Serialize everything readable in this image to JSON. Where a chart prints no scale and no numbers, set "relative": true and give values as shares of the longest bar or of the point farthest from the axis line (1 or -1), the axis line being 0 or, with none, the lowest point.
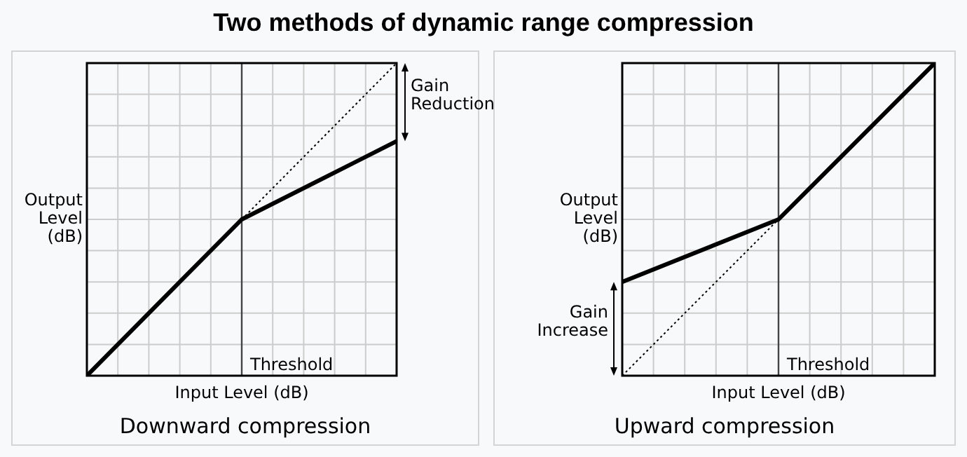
{
  "chart_data": [
    {
      "type": "line",
      "title": "Two methods of dynamic range compression",
      "subtitle": "Downward compression",
      "xlabel": "Input Level (dB)",
      "ylabel": "Output Level (dB)",
      "relative": true,
      "categories": [
        null,
        null,
        null
      ],
      "grid": true,
      "marker": "none",
      "series": [
        {
          "color": "#000000",
          "line_style": "solid",
          "values": [
            0,
            0.5,
            0.75
          ]
        },
        {
          "color": "#000000",
          "line_style": "dotted",
          "values": [
            null,
            0.5,
            1
          ]
        }
      ],
      "annotations": [
        "Threshold",
        "Gain Reduction"
      ]
    },
    {
      "type": "line",
      "subtitle": "Upward compression",
      "xlabel": "Input Level (dB)",
      "ylabel": "Output Level (dB)",
      "relative": true,
      "categories": [
        null,
        null,
        null
      ],
      "grid": true,
      "marker": "none",
      "series": [
        {
          "color": "#000000",
          "line_style": "solid",
          "values": [
            0.3,
            0.5,
            1
          ]
        },
        {
          "color": "#000000",
          "line_style": "dotted",
          "values": [
            0,
            0.5,
            null
          ]
        }
      ],
      "annotations": [
        "Threshold",
        "Gain Increase"
      ]
    }
  ]
}
